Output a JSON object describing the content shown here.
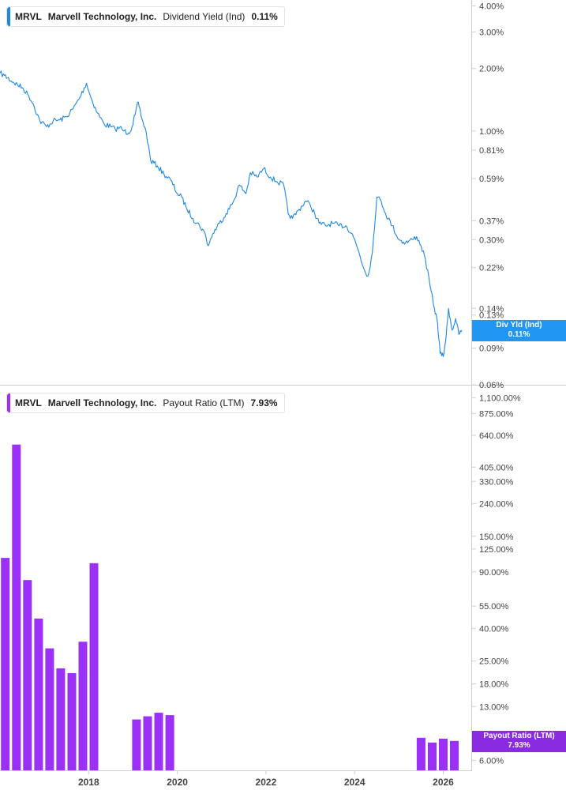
{
  "colors": {
    "line": "#1e88e5",
    "bar": "#9b30f7",
    "badge_top": "#2196f3",
    "badge_bottom": "#8a2be2",
    "axis": "#cfcfcf",
    "tick_text": "#444444"
  },
  "top_panel": {
    "legend": {
      "ticker": "MRVL",
      "company": "Marvell Technology, Inc.",
      "metric": "Dividend Yield (Ind)",
      "value": "0.11%"
    },
    "badge": {
      "line1": "Div Yld (Ind)",
      "line2": "0.11%"
    }
  },
  "bottom_panel": {
    "legend": {
      "ticker": "MRVL",
      "company": "Marvell Technology, Inc.",
      "metric": "Payout Ratio (LTM)",
      "value": "7.93%"
    },
    "badge": {
      "line1": "Payout Ratio (LTM)",
      "line2": "7.93%"
    }
  },
  "chart_data": [
    {
      "type": "line",
      "name": "Dividend Yield (Ind)",
      "scale": "log",
      "xlim": [
        2016.0,
        2026.65
      ],
      "ylim": [
        0.06,
        4.2
      ],
      "y_ticks": [
        4.0,
        3.0,
        2.0,
        1.0,
        0.81,
        0.59,
        0.37,
        0.3,
        0.22,
        0.14,
        0.13,
        0.09,
        0.06
      ],
      "y_tick_labels": [
        "4.00%",
        "3.00%",
        "2.00%",
        "1.00%",
        "0.81%",
        "0.59%",
        "0.37%",
        "0.30%",
        "0.22%",
        "0.14%",
        "0.13%",
        "0.09%",
        "0.06%"
      ],
      "points": [
        [
          2016.0,
          1.9
        ],
        [
          2016.1,
          1.85
        ],
        [
          2016.3,
          1.72
        ],
        [
          2016.5,
          1.62
        ],
        [
          2016.65,
          1.48
        ],
        [
          2016.75,
          1.35
        ],
        [
          2016.9,
          1.12
        ],
        [
          2017.05,
          1.05
        ],
        [
          2017.2,
          1.12
        ],
        [
          2017.35,
          1.13
        ],
        [
          2017.5,
          1.17
        ],
        [
          2017.65,
          1.28
        ],
        [
          2017.8,
          1.45
        ],
        [
          2017.95,
          1.7
        ],
        [
          2018.05,
          1.45
        ],
        [
          2018.2,
          1.22
        ],
        [
          2018.35,
          1.08
        ],
        [
          2018.5,
          1.05
        ],
        [
          2018.6,
          1.02
        ],
        [
          2018.7,
          1.04
        ],
        [
          2018.8,
          1.0
        ],
        [
          2018.9,
          0.98
        ],
        [
          2018.98,
          1.05
        ],
        [
          2019.05,
          1.2
        ],
        [
          2019.12,
          1.38
        ],
        [
          2019.2,
          1.15
        ],
        [
          2019.3,
          0.98
        ],
        [
          2019.4,
          0.72
        ],
        [
          2019.55,
          0.68
        ],
        [
          2019.7,
          0.62
        ],
        [
          2019.85,
          0.58
        ],
        [
          2020.0,
          0.5
        ],
        [
          2020.1,
          0.48
        ],
        [
          2020.2,
          0.43
        ],
        [
          2020.35,
          0.38
        ],
        [
          2020.5,
          0.35
        ],
        [
          2020.6,
          0.33
        ],
        [
          2020.7,
          0.28
        ],
        [
          2020.8,
          0.32
        ],
        [
          2020.95,
          0.36
        ],
        [
          2021.1,
          0.4
        ],
        [
          2021.25,
          0.45
        ],
        [
          2021.4,
          0.55
        ],
        [
          2021.55,
          0.5
        ],
        [
          2021.65,
          0.63
        ],
        [
          2021.8,
          0.6
        ],
        [
          2021.95,
          0.66
        ],
        [
          2022.1,
          0.6
        ],
        [
          2022.25,
          0.57
        ],
        [
          2022.4,
          0.55
        ],
        [
          2022.5,
          0.4
        ],
        [
          2022.6,
          0.38
        ],
        [
          2022.75,
          0.42
        ],
        [
          2022.9,
          0.46
        ],
        [
          2023.0,
          0.44
        ],
        [
          2023.1,
          0.4
        ],
        [
          2023.2,
          0.36
        ],
        [
          2023.35,
          0.35
        ],
        [
          2023.5,
          0.36
        ],
        [
          2023.65,
          0.35
        ],
        [
          2023.8,
          0.35
        ],
        [
          2023.95,
          0.32
        ],
        [
          2024.1,
          0.26
        ],
        [
          2024.2,
          0.22
        ],
        [
          2024.3,
          0.2
        ],
        [
          2024.4,
          0.26
        ],
        [
          2024.5,
          0.48
        ],
        [
          2024.6,
          0.46
        ],
        [
          2024.7,
          0.4
        ],
        [
          2024.85,
          0.35
        ],
        [
          2025.0,
          0.3
        ],
        [
          2025.15,
          0.29
        ],
        [
          2025.3,
          0.3
        ],
        [
          2025.4,
          0.31
        ],
        [
          2025.5,
          0.28
        ],
        [
          2025.6,
          0.24
        ],
        [
          2025.7,
          0.18
        ],
        [
          2025.8,
          0.14
        ],
        [
          2025.87,
          0.12
        ],
        [
          2025.93,
          0.085
        ],
        [
          2026.0,
          0.082
        ],
        [
          2026.07,
          0.105
        ],
        [
          2026.12,
          0.14
        ],
        [
          2026.2,
          0.11
        ],
        [
          2026.28,
          0.125
        ],
        [
          2026.35,
          0.105
        ],
        [
          2026.42,
          0.11
        ]
      ],
      "annotation": {
        "label": "Div Yld (Ind)",
        "value": 0.11
      }
    },
    {
      "type": "bar",
      "name": "Payout Ratio (LTM)",
      "scale": "log",
      "xlim": [
        2016.0,
        2026.65
      ],
      "ylim": [
        5.2,
        1250
      ],
      "x_ticks": [
        2018,
        2020,
        2022,
        2024,
        2026
      ],
      "x_tick_labels": [
        "2018",
        "2020",
        "2022",
        "2024",
        "2026"
      ],
      "y_ticks": [
        1100,
        875,
        640,
        405,
        330,
        240,
        150,
        125,
        90,
        55,
        40,
        25,
        18,
        13,
        6
      ],
      "y_tick_labels": [
        "1,100.00%",
        "875.00%",
        "640.00%",
        "405.00%",
        "330.00%",
        "240.00%",
        "150.00%",
        "125.00%",
        "90.00%",
        "55.00%",
        "40.00%",
        "25.00%",
        "18.00%",
        "13.00%",
        "6.00%"
      ],
      "bars": [
        [
          2016.12,
          110
        ],
        [
          2016.37,
          560
        ],
        [
          2016.62,
          80
        ],
        [
          2016.87,
          46
        ],
        [
          2017.12,
          30
        ],
        [
          2017.37,
          22.5
        ],
        [
          2017.62,
          21
        ],
        [
          2017.87,
          33
        ],
        [
          2018.12,
          102
        ],
        [
          2019.08,
          10.8
        ],
        [
          2019.33,
          11.3
        ],
        [
          2019.58,
          11.9
        ],
        [
          2019.83,
          11.5
        ],
        [
          2025.5,
          8.3
        ],
        [
          2025.75,
          7.75
        ],
        [
          2026.0,
          8.2
        ],
        [
          2026.25,
          7.93
        ]
      ],
      "annotation": {
        "label": "Payout Ratio (LTM)",
        "value": 7.93
      }
    }
  ]
}
